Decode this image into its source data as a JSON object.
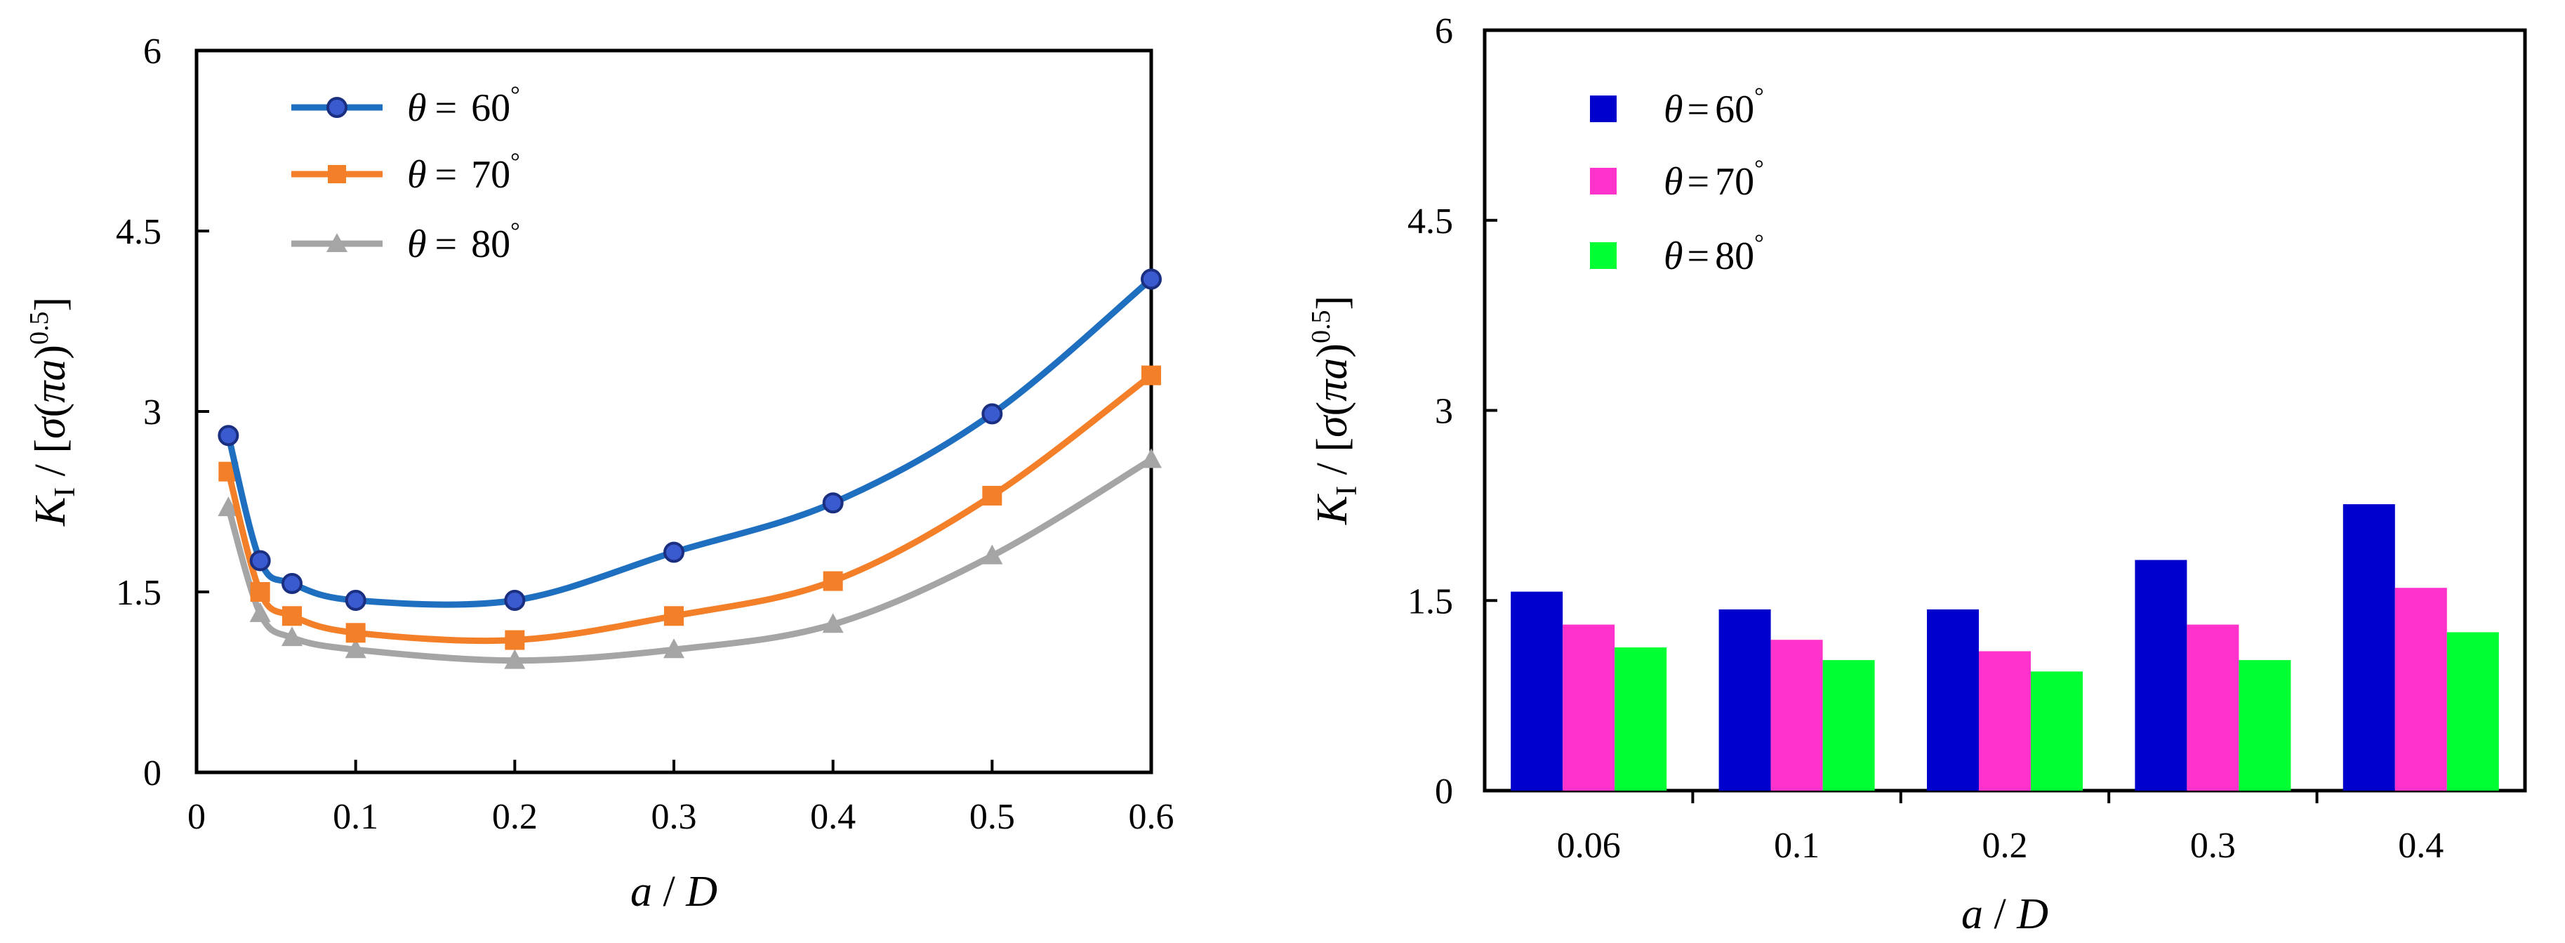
{
  "chart_data": [
    {
      "type": "line",
      "title": "",
      "xlabel": "a / D",
      "ylabel": "K I / [σ(πa)0.5]",
      "xlim": [
        0,
        0.6
      ],
      "ylim": [
        0,
        6
      ],
      "x_ticks": [
        "0",
        "0.1",
        "0.2",
        "0.3",
        "0.4",
        "0.5",
        "0.6"
      ],
      "y_ticks": [
        "0",
        "1.5",
        "3",
        "4.5",
        "6"
      ],
      "legend_position": "top-left",
      "series": [
        {
          "name": "θ = 60°",
          "marker": "circle",
          "color": "#1F6FC0",
          "marker_fill": "#3A5BD0",
          "x": [
            0.02,
            0.04,
            0.06,
            0.1,
            0.2,
            0.3,
            0.4,
            0.5,
            0.6
          ],
          "y": [
            2.8,
            1.76,
            1.57,
            1.43,
            1.43,
            1.83,
            2.24,
            2.98,
            4.1
          ]
        },
        {
          "name": "θ = 70°",
          "marker": "square",
          "color": "#F47F29",
          "marker_fill": "#F47F29",
          "x": [
            0.02,
            0.04,
            0.06,
            0.1,
            0.2,
            0.3,
            0.4,
            0.5,
            0.6
          ],
          "y": [
            2.5,
            1.5,
            1.3,
            1.16,
            1.1,
            1.3,
            1.59,
            2.3,
            3.3
          ]
        },
        {
          "name": "θ = 80°",
          "marker": "triangle",
          "color": "#A5A5A5",
          "marker_fill": "#A5A5A5",
          "x": [
            0.02,
            0.04,
            0.06,
            0.1,
            0.2,
            0.3,
            0.4,
            0.5,
            0.6
          ],
          "y": [
            2.2,
            1.32,
            1.12,
            1.02,
            0.93,
            1.02,
            1.23,
            1.8,
            2.6
          ]
        }
      ]
    },
    {
      "type": "bar",
      "title": "",
      "xlabel": "a / D",
      "ylabel": "K I / [σ(πa)0.5]",
      "ylim": [
        0,
        6
      ],
      "y_ticks": [
        "0",
        "1.5",
        "3",
        "4.5",
        "6"
      ],
      "categories": [
        "0.06",
        "0.1",
        "0.2",
        "0.3",
        "0.4"
      ],
      "legend_position": "top-left",
      "series": [
        {
          "name": "θ = 60°",
          "color": "#0000CC",
          "values": [
            1.57,
            1.43,
            1.43,
            1.82,
            2.26
          ]
        },
        {
          "name": "θ = 70°",
          "color": "#FF33CC",
          "values": [
            1.31,
            1.19,
            1.1,
            1.31,
            1.6
          ]
        },
        {
          "name": "θ = 80°",
          "color": "#00FF33",
          "values": [
            1.13,
            1.03,
            0.94,
            1.03,
            1.25
          ]
        }
      ]
    }
  ],
  "legend_text": {
    "theta": "θ",
    "eq": "=",
    "s60": "60",
    "s70": "70",
    "s80": "80",
    "deg": "°"
  },
  "axis_text": {
    "x_a": "a",
    "x_sep": " / ",
    "x_D": "D",
    "y_K": "K",
    "y_sub": "I",
    "y_mid": " / [",
    "y_sigma": "σ",
    "y_open": "(",
    "y_pi": "π",
    "y_a": "a",
    "y_close": ")",
    "y_exp": "0.5",
    "y_end": "]"
  }
}
